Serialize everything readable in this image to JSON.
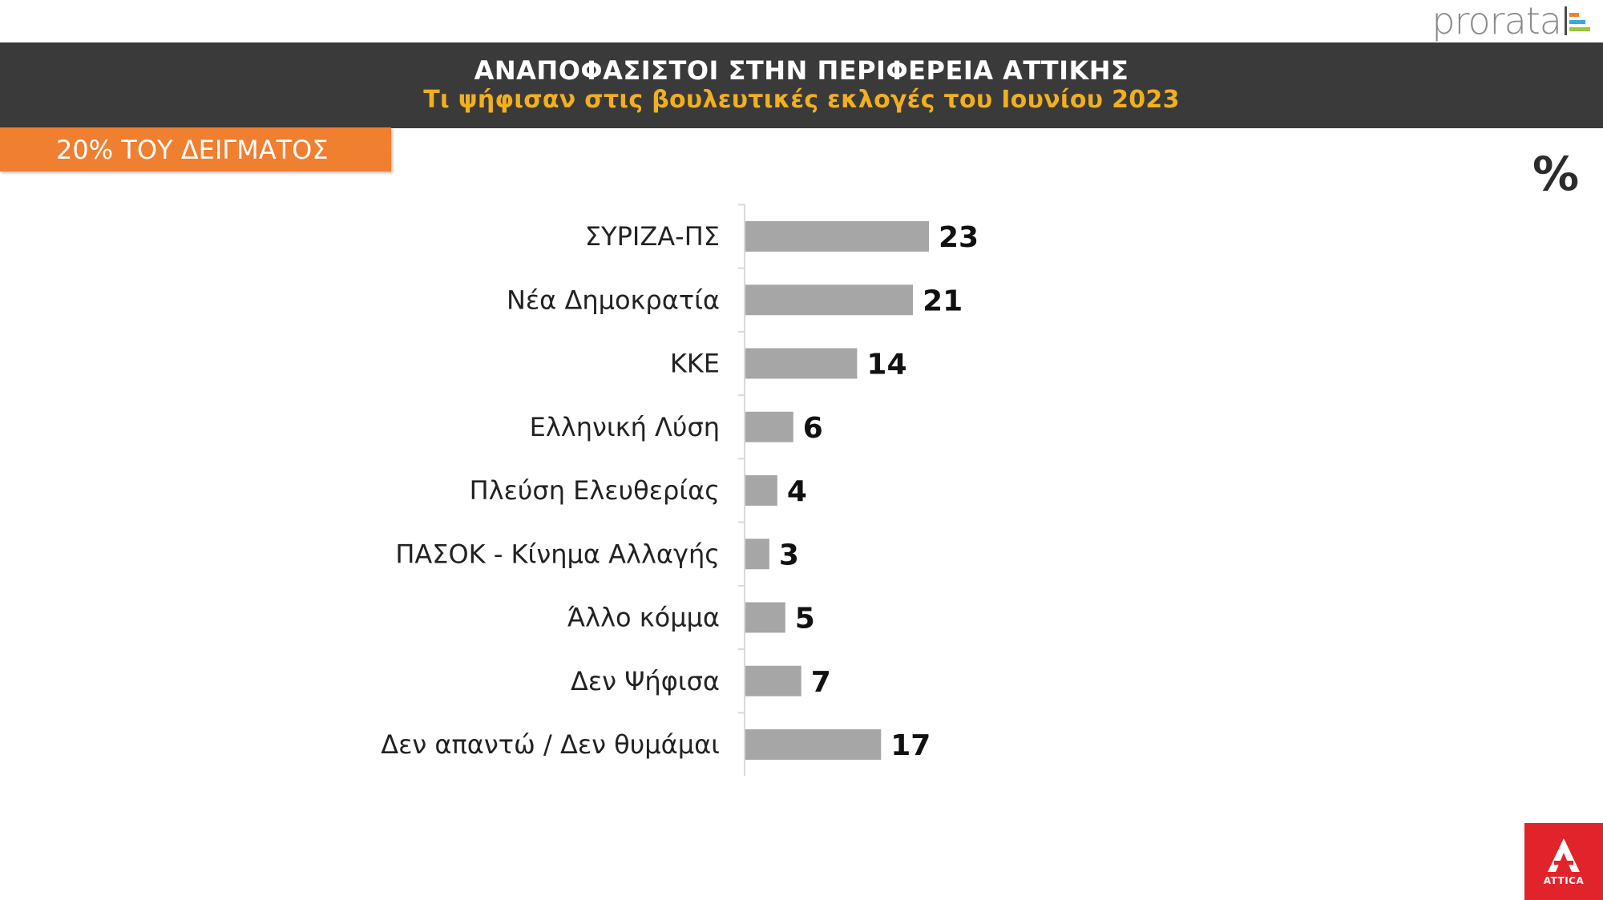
{
  "brand": {
    "logo_text": "prorata",
    "broadcaster": "ATTICA",
    "logo_mark_colors": [
      "#4b4b4b",
      "#f07f2f",
      "#3aa8d8",
      "#9bc53d"
    ]
  },
  "header": {
    "title": "ΑΝΑΠΟΦΑΣΙΣΤΟΙ ΣΤΗΝ ΠΕΡΙΦΕΡΕΙΑ ΑΤΤΙΚΗΣ",
    "subtitle": "Τι ψήφισαν στις βουλευτικές εκλογές του Ιουνίου 2023"
  },
  "sample_badge": "20% ΤΟΥ ΔΕΙΓΜΑΤΟΣ",
  "unit_symbol": "%",
  "colors": {
    "header_bg": "#3a3a3a",
    "subtitle": "#f2b01e",
    "badge": "#f07f2f",
    "bar": "#a6a6a6",
    "attica_red": "#e1232b"
  },
  "chart_data": {
    "type": "bar",
    "orientation": "horizontal",
    "categories": [
      "ΣΥΡΙΖΑ-ΠΣ",
      "Νέα Δημοκρατία",
      "ΚΚΕ",
      "Ελληνική Λύση",
      "Πλεύση Ελευθερίας",
      "ΠΑΣΟΚ - Κίνημα Αλλαγής",
      "Άλλο κόμμα",
      "Δεν Ψήφισα",
      "Δεν απαντώ / Δεν θυμάμαι"
    ],
    "values": [
      23,
      21,
      14,
      6,
      4,
      3,
      5,
      7,
      17
    ],
    "xlim": [
      0,
      23
    ],
    "grid": false,
    "legend": "none"
  }
}
